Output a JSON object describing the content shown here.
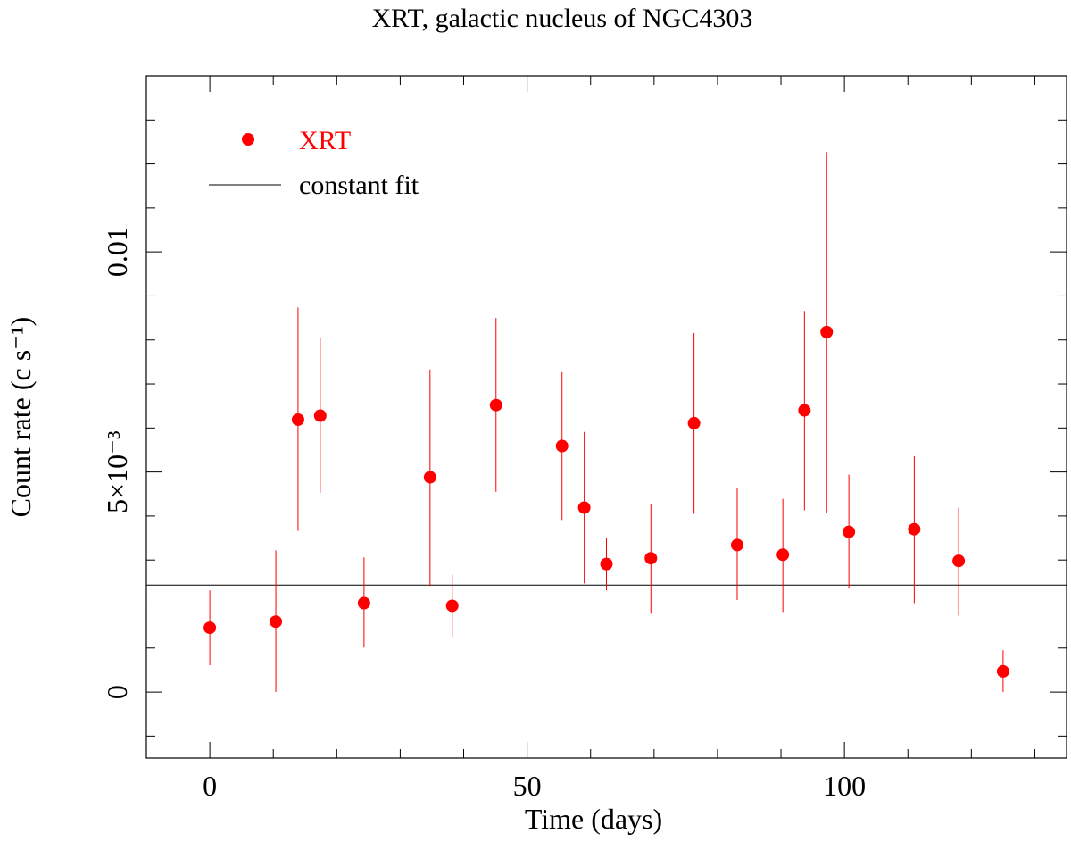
{
  "chart_data": {
    "type": "scatter",
    "title": "XRT, galactic nucleus of NGC4303",
    "xlabel": "Time (days)",
    "ylabel": "Count rate (c s⁻¹)",
    "xlim": [
      -10,
      135
    ],
    "ylim": [
      -0.0015,
      0.014
    ],
    "xticks": [
      {
        "v": 0,
        "label": "0"
      },
      {
        "v": 50,
        "label": "50"
      },
      {
        "v": 100,
        "label": "100"
      }
    ],
    "yticks": [
      {
        "v": 0,
        "label": "0"
      },
      {
        "v": 0.005,
        "label": "5×10⁻³"
      },
      {
        "v": 0.01,
        "label": "0.01"
      }
    ],
    "x_minor_step": 10,
    "y_minor_step": 0.001,
    "grid": false,
    "legend_placement": "top-left",
    "series": [
      {
        "name": "XRT",
        "color": "#ff0000",
        "points": [
          {
            "x": 0.0,
            "y": 0.00146,
            "lo": 0.00061,
            "hi": 0.00231
          },
          {
            "x": 10.4,
            "y": 0.0016,
            "lo": 0.0,
            "hi": 0.00322
          },
          {
            "x": 13.9,
            "y": 0.00619,
            "lo": 0.00366,
            "hi": 0.00874
          },
          {
            "x": 17.4,
            "y": 0.00628,
            "lo": 0.00453,
            "hi": 0.00804
          },
          {
            "x": 24.3,
            "y": 0.00202,
            "lo": 0.00101,
            "hi": 0.00306
          },
          {
            "x": 34.7,
            "y": 0.00488,
            "lo": 0.00241,
            "hi": 0.00733
          },
          {
            "x": 38.2,
            "y": 0.00196,
            "lo": 0.00126,
            "hi": 0.00267
          },
          {
            "x": 45.1,
            "y": 0.00652,
            "lo": 0.00455,
            "hi": 0.0085
          },
          {
            "x": 55.5,
            "y": 0.00559,
            "lo": 0.00391,
            "hi": 0.00727
          },
          {
            "x": 59.0,
            "y": 0.00419,
            "lo": 0.00247,
            "hi": 0.00591
          },
          {
            "x": 62.5,
            "y": 0.00291,
            "lo": 0.00231,
            "hi": 0.0035
          },
          {
            "x": 69.5,
            "y": 0.00304,
            "lo": 0.00178,
            "hi": 0.00427
          },
          {
            "x": 76.3,
            "y": 0.00611,
            "lo": 0.00405,
            "hi": 0.00816
          },
          {
            "x": 83.1,
            "y": 0.00334,
            "lo": 0.00209,
            "hi": 0.00464
          },
          {
            "x": 90.3,
            "y": 0.00312,
            "lo": 0.00182,
            "hi": 0.00439
          },
          {
            "x": 93.7,
            "y": 0.0064,
            "lo": 0.00413,
            "hi": 0.00866
          },
          {
            "x": 97.2,
            "y": 0.00818,
            "lo": 0.00407,
            "hi": 0.01227
          },
          {
            "x": 100.7,
            "y": 0.00364,
            "lo": 0.00235,
            "hi": 0.00494
          },
          {
            "x": 111.0,
            "y": 0.0037,
            "lo": 0.00202,
            "hi": 0.00536
          },
          {
            "x": 118.0,
            "y": 0.00298,
            "lo": 0.00174,
            "hi": 0.00419
          },
          {
            "x": 125.0,
            "y": 0.00047,
            "lo": 0.0,
            "hi": 0.00095
          }
        ]
      },
      {
        "name": "constant fit",
        "type": "hline",
        "color": "#000000",
        "y": 0.00243
      }
    ]
  }
}
